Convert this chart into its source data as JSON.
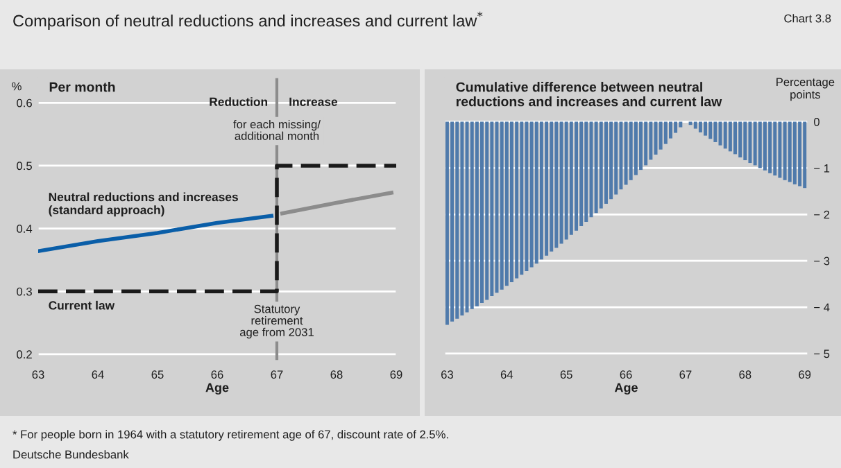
{
  "chart_data": [
    {
      "type": "line",
      "title": "Per month",
      "ylabel": "%",
      "xlabel": "Age",
      "xlim": [
        63,
        69
      ],
      "xticks": [
        63,
        64,
        65,
        66,
        67,
        68,
        69
      ],
      "ylim": [
        0.19,
        0.64
      ],
      "yticks": [
        0.2,
        0.3,
        0.4,
        0.5,
        0.6
      ],
      "grid": "y",
      "legend": false,
      "series": [
        {
          "name": "Neutral reductions and increases\n(standard approach)",
          "color": "#0a5ea8",
          "line_style": "solid",
          "x": [
            63,
            64,
            65,
            66,
            66.91
          ],
          "values": [
            0.364,
            0.38,
            0.393,
            0.409,
            0.42
          ]
        },
        {
          "color": "#8c8c8c",
          "line_style": "solid",
          "x": [
            67.09,
            68,
            68.92
          ],
          "values": [
            0.424,
            0.441,
            0.457
          ]
        },
        {
          "name": "Current law",
          "color": "#1a1a1a",
          "line_style": "dashed",
          "x": [
            63,
            67,
            67,
            69
          ],
          "values": [
            0.3,
            0.3,
            0.5,
            0.5
          ]
        }
      ],
      "ref_lines": [
        {
          "axis": "x",
          "value": 67,
          "label": "Statutory\nretirement\nage from 2031",
          "color": "#8c8c8c"
        }
      ],
      "annotations": [
        "Comparison of neutral reductions and increases and current law$^{*}$",
        "Chart 3.8",
        "* For people born in 1964 with a statutory retirement age of 67, discount rate of 2.5%.",
        "Deutsche Bundesbank",
        "Reduction",
        "Increase",
        "for each missing/\nadditional month"
      ]
    },
    {
      "type": "bar",
      "title": "Cumulative difference between neutral\nreductions and increases and current law",
      "ylabel": "Percentage\npoints",
      "xlabel": "Age",
      "xlim": [
        62.96,
        69.05
      ],
      "xticks": [
        63,
        64,
        65,
        66,
        67,
        68,
        69
      ],
      "ylim": [
        -5.15,
        0.95
      ],
      "yticks": [
        {
          "value": -5,
          "label": "− 5"
        },
        {
          "value": -4,
          "label": "− 4"
        },
        {
          "value": -3,
          "label": "− 3"
        },
        {
          "value": -2,
          "label": "− 2"
        },
        {
          "value": -1,
          "label": "− 1"
        },
        0
      ],
      "grid": "y",
      "legend": false,
      "color": "#4f7aab",
      "x": [
        63,
        63.083,
        63.167,
        63.25,
        63.333,
        63.417,
        63.5,
        63.583,
        63.667,
        63.75,
        63.833,
        63.917,
        64,
        64.083,
        64.167,
        64.25,
        64.333,
        64.417,
        64.5,
        64.583,
        64.667,
        64.75,
        64.833,
        64.917,
        65,
        65.083,
        65.167,
        65.25,
        65.333,
        65.417,
        65.5,
        65.583,
        65.667,
        65.75,
        65.833,
        65.917,
        66,
        66.083,
        66.167,
        66.25,
        66.333,
        66.417,
        66.5,
        66.583,
        66.667,
        66.75,
        66.833,
        66.917,
        67,
        67.083,
        67.167,
        67.25,
        67.333,
        67.417,
        67.5,
        67.583,
        67.667,
        67.75,
        67.833,
        67.917,
        68,
        68.083,
        68.167,
        68.25,
        68.333,
        68.417,
        68.5,
        68.583,
        68.667,
        68.75,
        68.833,
        68.917,
        69
      ],
      "values": [
        -4.38,
        -4.31,
        -4.25,
        -4.18,
        -4.11,
        -4.04,
        -3.98,
        -3.91,
        -3.84,
        -3.76,
        -3.69,
        -3.62,
        -3.54,
        -3.46,
        -3.38,
        -3.3,
        -3.22,
        -3.14,
        -3.06,
        -2.97,
        -2.89,
        -2.8,
        -2.72,
        -2.63,
        -2.54,
        -2.44,
        -2.35,
        -2.25,
        -2.16,
        -2.06,
        -1.97,
        -1.87,
        -1.77,
        -1.67,
        -1.57,
        -1.46,
        -1.36,
        -1.26,
        -1.15,
        -1.04,
        -0.94,
        -0.82,
        -0.71,
        -0.6,
        -0.48,
        -0.36,
        -0.24,
        -0.12,
        0,
        -0.07,
        -0.15,
        -0.23,
        -0.3,
        -0.37,
        -0.44,
        -0.51,
        -0.58,
        -0.64,
        -0.7,
        -0.77,
        -0.83,
        -0.89,
        -0.94,
        -1.0,
        -1.05,
        -1.11,
        -1.16,
        -1.21,
        -1.26,
        -1.3,
        -1.35,
        -1.39,
        -1.43
      ]
    }
  ]
}
